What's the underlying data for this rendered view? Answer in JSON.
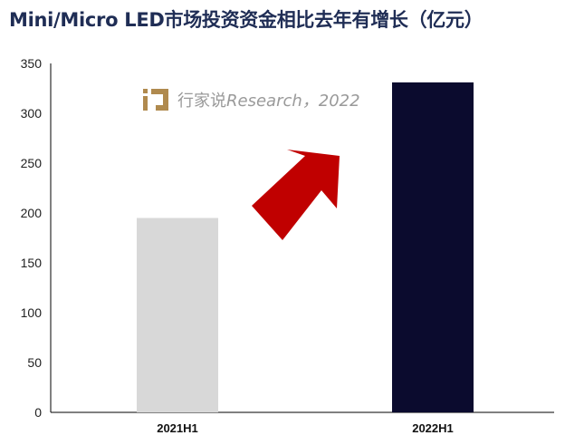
{
  "title": "Mini/Micro LED市场投资资金相比去年有增长（亿元）",
  "watermark": {
    "cn": "行家说",
    "latin": "Research，2022"
  },
  "colors": {
    "bar_2021": "#d8d8d8",
    "bar_2022": "#0b0b2e",
    "arrow": "#c00000",
    "title": "#1f2d55",
    "logo": "#b08a4e"
  },
  "chart_data": {
    "type": "bar",
    "title": "Mini/Micro LED市场投资资金相比去年有增长（亿元）",
    "categories": [
      "2021H1",
      "2022H1"
    ],
    "values": [
      195,
      331
    ],
    "xlabel": "",
    "ylabel": "",
    "ylim": [
      0,
      350
    ],
    "yticks": [
      0,
      50,
      100,
      150,
      200,
      250,
      300,
      350
    ],
    "grid": false,
    "annotation": "red upward arrow indicating growth"
  }
}
